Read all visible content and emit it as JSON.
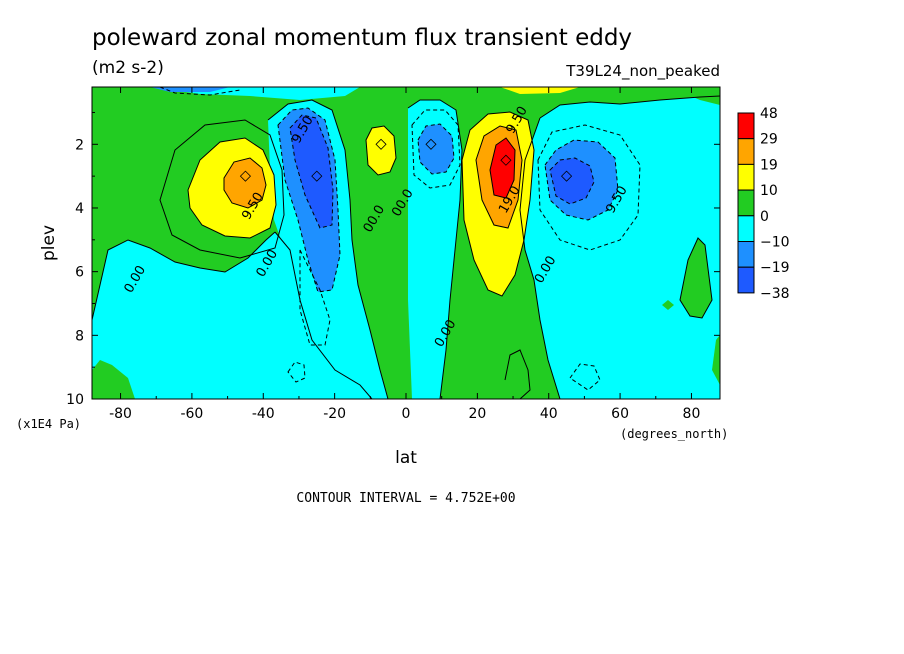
{
  "chart_data": {
    "type": "heatmap",
    "title": "poleward zonal momentum flux transient eddy",
    "subtitle": "(m2 s-2)",
    "run_label": "T39L24_non_peaked",
    "xlabel": "lat",
    "ylabel": "plev",
    "x_units": "(degrees_north)",
    "y_units": "(x1E4 Pa)",
    "xlim": [
      -88,
      88
    ],
    "ylim": [
      10,
      0.2
    ],
    "x_ticks": [
      -80,
      -60,
      -40,
      -20,
      0,
      20,
      40,
      60,
      80
    ],
    "y_ticks": [
      2,
      4,
      6,
      8,
      10
    ],
    "contour_interval_text": "CONTOUR INTERVAL = 4.752E+00",
    "colorbar": {
      "labels": [
        "48",
        "29",
        "19",
        "10",
        "0",
        "−10",
        "−19",
        "−38"
      ],
      "colors": [
        "#ff0000",
        "#ffa500",
        "#ffff00",
        "#22cc22",
        "#00ffff",
        "#1e90ff",
        "#1e5aff"
      ]
    },
    "contour_labels": [
      {
        "text": "9.50",
        "lat": -28,
        "plev": 1.6
      },
      {
        "text": "9.50",
        "lat": -42,
        "plev": 4.0
      },
      {
        "text": "0.00",
        "lat": -38,
        "plev": 5.8
      },
      {
        "text": "0.00",
        "lat": -75,
        "plev": 6.3
      },
      {
        "text": "00.0",
        "lat": -8,
        "plev": 4.4
      },
      {
        "text": "00.0",
        "lat": 0,
        "plev": 3.9
      },
      {
        "text": "9.50",
        "lat": 32,
        "plev": 1.3
      },
      {
        "text": "19.0",
        "lat": 30,
        "plev": 3.8
      },
      {
        "text": "0.00",
        "lat": 40,
        "plev": 6.0
      },
      {
        "text": "9.50",
        "lat": 60,
        "plev": 3.8
      },
      {
        "text": "0.00",
        "lat": 12,
        "plev": 8.0
      }
    ],
    "features": [
      {
        "sign": "positive",
        "level_max": 29,
        "lat": -45,
        "plev": 3.0
      },
      {
        "sign": "negative",
        "level_max": -38,
        "lat": -25,
        "plev": 3.0
      },
      {
        "sign": "positive",
        "level_max": 10,
        "lat": -7,
        "plev": 2.0
      },
      {
        "sign": "negative",
        "level_max": -19,
        "lat": 7,
        "plev": 2.0
      },
      {
        "sign": "positive",
        "level_max": 48,
        "lat": 28,
        "plev": 2.5
      },
      {
        "sign": "negative",
        "level_max": -38,
        "lat": 45,
        "plev": 3.0
      }
    ]
  }
}
